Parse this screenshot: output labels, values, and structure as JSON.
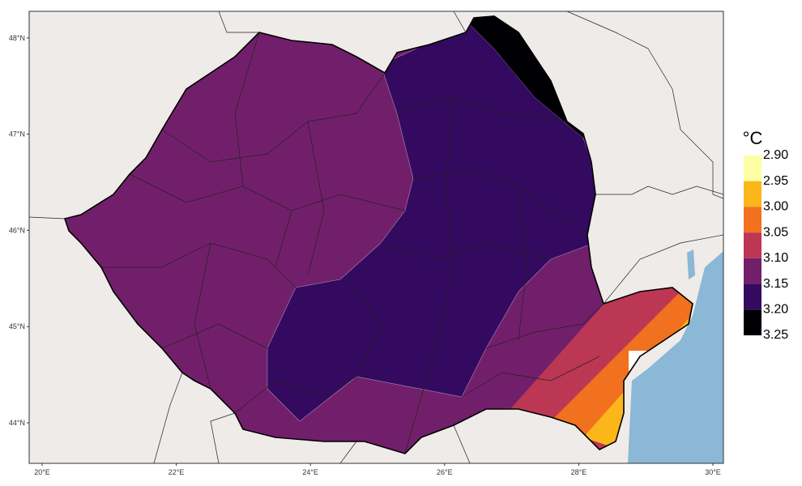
{
  "map": {
    "lon_ticks": [
      {
        "value": 20,
        "label": "20°E"
      },
      {
        "value": 22,
        "label": "22°E"
      },
      {
        "value": 24,
        "label": "24°E"
      },
      {
        "value": 26,
        "label": "26°E"
      },
      {
        "value": 28,
        "label": "28°E"
      },
      {
        "value": 30,
        "label": "30°E"
      }
    ],
    "lat_ticks": [
      {
        "value": 44,
        "label": "44°N"
      },
      {
        "value": 45,
        "label": "45°N"
      },
      {
        "value": 46,
        "label": "46°N"
      },
      {
        "value": 47,
        "label": "47°N"
      },
      {
        "value": 48,
        "label": "48°N"
      }
    ],
    "colorbar": {
      "unit": "°C",
      "levels": [
        {
          "value": 2.9,
          "label": "2.90"
        },
        {
          "value": 2.95,
          "label": "2.95"
        },
        {
          "value": 3.0,
          "label": "3.00"
        },
        {
          "value": 3.05,
          "label": "3.05"
        },
        {
          "value": 3.1,
          "label": "3.10"
        },
        {
          "value": 3.15,
          "label": "3.15"
        },
        {
          "value": 3.2,
          "label": "3.20"
        },
        {
          "value": 3.25,
          "label": "3.25"
        }
      ],
      "colors": [
        "#fcffa4",
        "#fbb61a",
        "#f1711f",
        "#bc3754",
        "#721f6b",
        "#330a5f",
        "#000004"
      ]
    }
  }
}
